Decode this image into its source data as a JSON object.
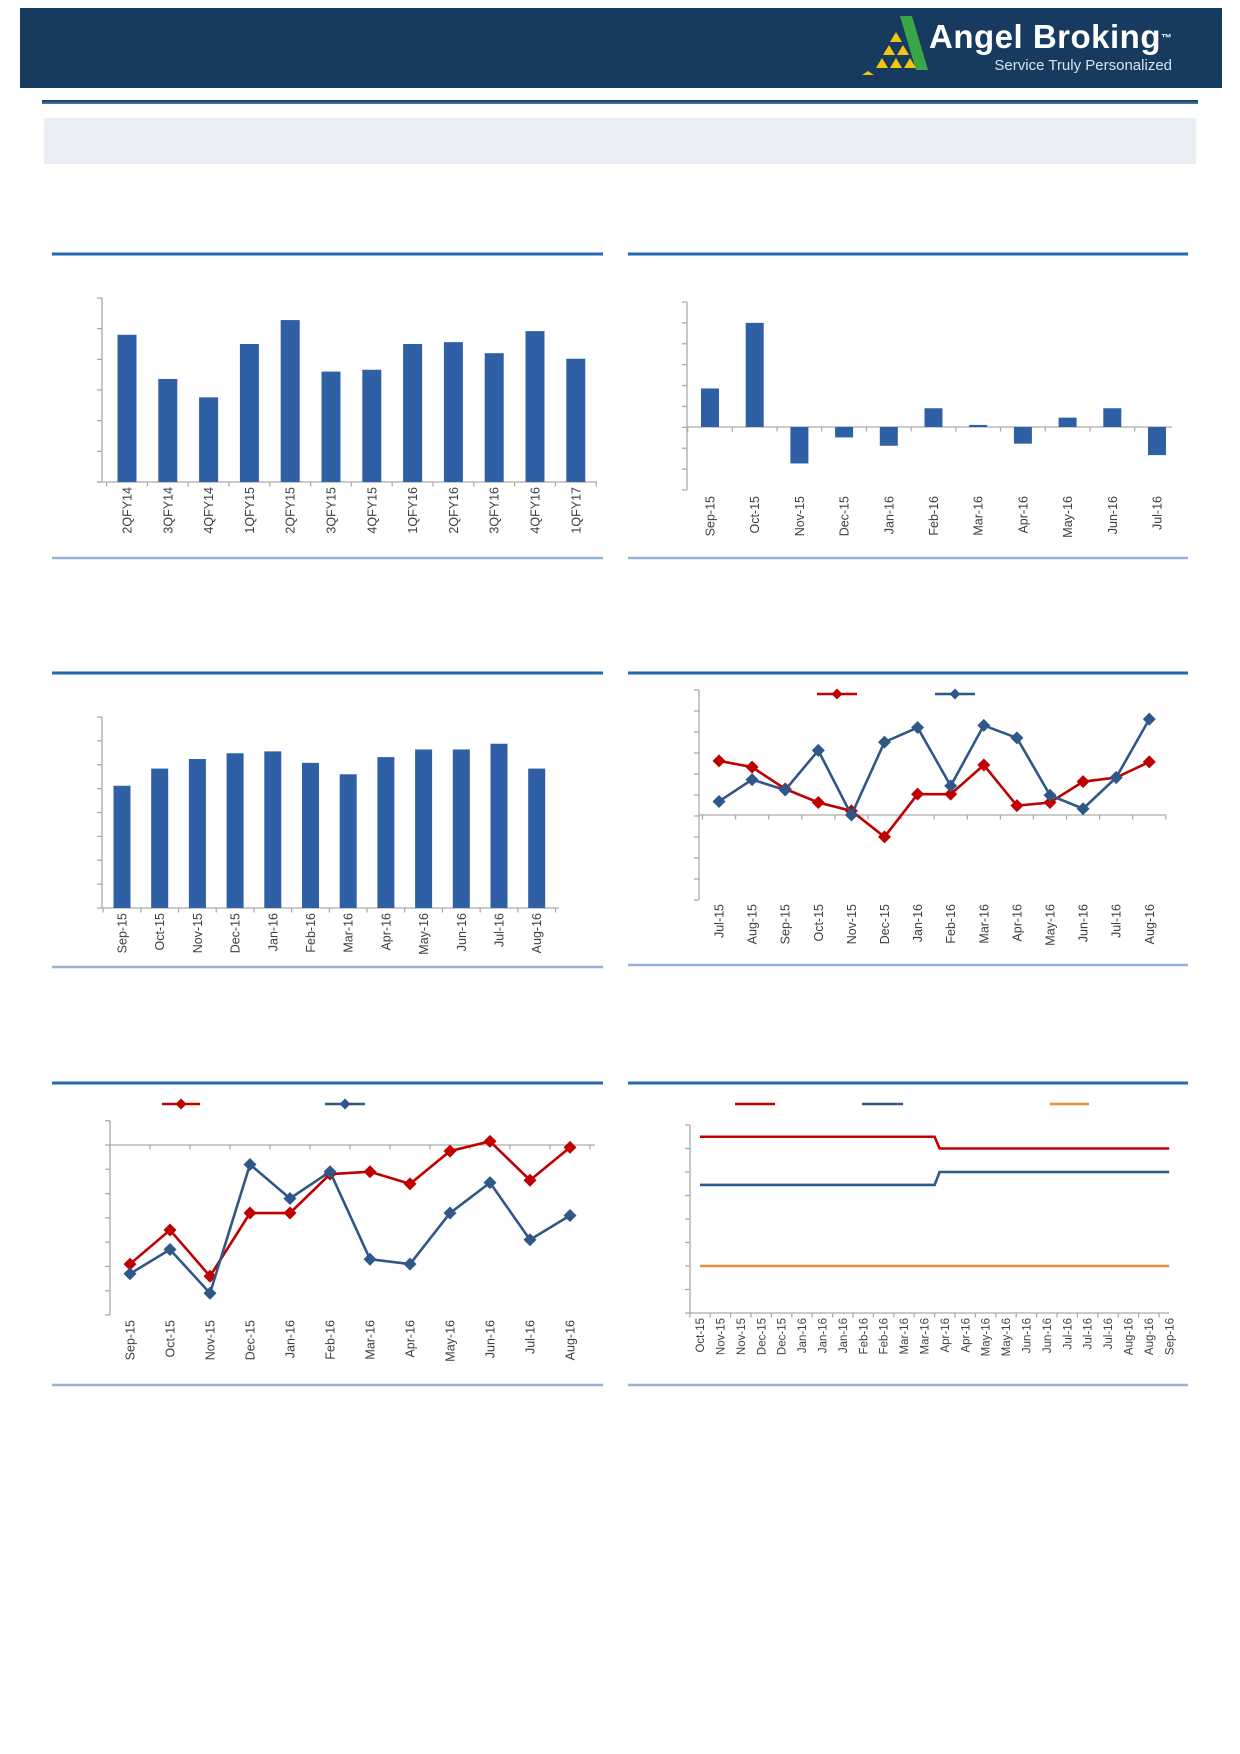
{
  "header": {
    "brand": "Angel Broking",
    "trademark": "TM",
    "tagline": "Service Truly Personalized"
  },
  "palette": {
    "header_navy": "#173A5F",
    "logo_yellow": "#F3C50F",
    "logo_green": "#3BA648",
    "bar_blue": "#2F5FA4",
    "series_red": "#C00000",
    "series_blue": "#2F5788",
    "series_orange": "#E78F3C",
    "separator_dark": "#2166AE",
    "separator_light": "#95B3D7",
    "axis_gray": "#ABABAB",
    "label_gray": "#3F3F3F",
    "info_box_bg": "#E9EFF5"
  },
  "chart_data": [
    {
      "id": "quarterly-bars-top-left",
      "type": "bar",
      "title": "",
      "categories": [
        "2QFY14",
        "3QFY14",
        "4QFY14",
        "1QFY15",
        "2QFY15",
        "3QFY15",
        "4QFY15",
        "1QFY16",
        "2QFY16",
        "3QFY16",
        "4QFY16",
        "1QFY17"
      ],
      "values": [
        80,
        56,
        46,
        75,
        88,
        60,
        61,
        75,
        76,
        70,
        82,
        67
      ],
      "value_scale": "percent-of-axis-max",
      "ylim": [
        0,
        100
      ],
      "y_axis_labels": "none visible",
      "bar_color": "#2F5FA4"
    },
    {
      "id": "monthly-net-change-bars-top-right",
      "type": "bar",
      "title": "",
      "categories": [
        "Sep-15",
        "Oct-15",
        "Nov-15",
        "Dec-15",
        "Jan-16",
        "Feb-16",
        "Mar-16",
        "Apr-16",
        "May-16",
        "Jun-16",
        "Jul-16"
      ],
      "values": [
        1.85,
        5.0,
        -1.75,
        -0.5,
        -0.9,
        0.9,
        0.1,
        -0.8,
        0.45,
        0.9,
        -1.35
      ],
      "value_scale": "axis-tick-units",
      "ylim": [
        -3,
        6
      ],
      "y_axis_labels": "none visible",
      "bar_color": "#2F5FA4"
    },
    {
      "id": "monthly-bars-mid-left",
      "type": "bar",
      "title": "",
      "categories": [
        "Sep-15",
        "Oct-15",
        "Nov-15",
        "Dec-15",
        "Jan-16",
        "Feb-16",
        "Mar-16",
        "Apr-16",
        "May-16",
        "Jun-16",
        "Jul-16",
        "Aug-16"
      ],
      "values": [
        64,
        73,
        78,
        81,
        82,
        76,
        70,
        79,
        83,
        83,
        86,
        73
      ],
      "value_scale": "percent-of-axis-max",
      "ylim": [
        0,
        100
      ],
      "y_axis_labels": "none visible",
      "bar_color": "#2F5FA4"
    },
    {
      "id": "two-series-line-mid-right",
      "type": "line",
      "title": "",
      "marker": "diamond",
      "legend": "top-center, swatch lines only, labels not visible",
      "categories": [
        "Jul-15",
        "Aug-15",
        "Sep-15",
        "Oct-15",
        "Nov-15",
        "Dec-15",
        "Jan-16",
        "Feb-16",
        "Mar-16",
        "Apr-16",
        "May-16",
        "Jun-16",
        "Jul-16",
        "Aug-16"
      ],
      "series": [
        {
          "name": "red-series",
          "color": "#C00000",
          "values": [
            2.6,
            2.3,
            1.25,
            0.6,
            0.2,
            -1.05,
            1.0,
            1.0,
            2.4,
            0.45,
            0.6,
            1.6,
            1.8,
            2.55
          ]
        },
        {
          "name": "blue-series",
          "color": "#2F5788",
          "values": [
            0.65,
            1.7,
            1.2,
            3.1,
            0.0,
            3.5,
            4.2,
            1.4,
            4.3,
            3.7,
            0.95,
            0.3,
            1.8,
            4.6
          ]
        }
      ],
      "value_scale": "axis-tick-units",
      "ylim": [
        -4,
        6
      ],
      "y_axis_labels": "none visible"
    },
    {
      "id": "two-series-line-bottom-left",
      "type": "line",
      "title": "",
      "marker": "diamond",
      "legend": "top, swatch lines only, labels not visible",
      "categories": [
        "Sep-15",
        "Oct-15",
        "Nov-15",
        "Dec-15",
        "Jan-16",
        "Feb-16",
        "Mar-16",
        "Apr-16",
        "May-16",
        "Jun-16",
        "Jul-16",
        "Aug-16"
      ],
      "series": [
        {
          "name": "red-series",
          "color": "#C00000",
          "values": [
            -4.9,
            -3.5,
            -5.4,
            -2.8,
            -2.8,
            -1.2,
            -1.1,
            -1.6,
            -0.25,
            0.15,
            -1.45,
            -0.1
          ]
        },
        {
          "name": "blue-series",
          "color": "#2F5788",
          "values": [
            -5.3,
            -4.3,
            -6.1,
            -0.8,
            -2.2,
            -1.1,
            -4.7,
            -4.9,
            -2.8,
            -1.55,
            -3.9,
            -2.9
          ]
        }
      ],
      "value_scale": "axis-tick-units",
      "ylim": [
        -7,
        1
      ],
      "y_axis_labels": "none visible"
    },
    {
      "id": "three-series-step-line-bottom-right",
      "type": "line",
      "title": "",
      "marker": "none",
      "legend": "top, swatch lines only, labels not visible",
      "categories": [
        "Oct-15",
        "Nov-15",
        "Nov-15",
        "Dec-15",
        "Dec-15",
        "Jan-16",
        "Jan-16",
        "Jan-16",
        "Feb-16",
        "Feb-16",
        "Mar-16",
        "Mar-16",
        "Apr-16",
        "Apr-16",
        "May-16",
        "May-16",
        "Jun-16",
        "Jun-16",
        "Jul-16",
        "Jul-16",
        "Jul-16",
        "Aug-16",
        "Aug-16",
        "Sep-16"
      ],
      "series": [
        {
          "name": "red-series",
          "color": "#C00000",
          "values": [
            7.5,
            7.5,
            7.5,
            7.5,
            7.5,
            7.5,
            7.5,
            7.5,
            7.5,
            7.5,
            7.5,
            7.5,
            7.0,
            7.0,
            7.0,
            7.0,
            7.0,
            7.0,
            7.0,
            7.0,
            7.0,
            7.0,
            7.0,
            7.0
          ]
        },
        {
          "name": "blue-series",
          "color": "#2F5788",
          "values": [
            5.45,
            5.45,
            5.45,
            5.45,
            5.45,
            5.45,
            5.45,
            5.45,
            5.45,
            5.45,
            5.45,
            5.45,
            6.0,
            6.0,
            6.0,
            6.0,
            6.0,
            6.0,
            6.0,
            6.0,
            6.0,
            6.0,
            6.0,
            6.0
          ]
        },
        {
          "name": "orange-series",
          "color": "#E78F3C",
          "values": [
            2.0,
            2.0,
            2.0,
            2.0,
            2.0,
            2.0,
            2.0,
            2.0,
            2.0,
            2.0,
            2.0,
            2.0,
            2.0,
            2.0,
            2.0,
            2.0,
            2.0,
            2.0,
            2.0,
            2.0,
            2.0,
            2.0,
            2.0,
            2.0
          ]
        }
      ],
      "value_scale": "axis-tick-units",
      "ylim": [
        0,
        8
      ],
      "y_axis_labels": "none visible"
    }
  ]
}
